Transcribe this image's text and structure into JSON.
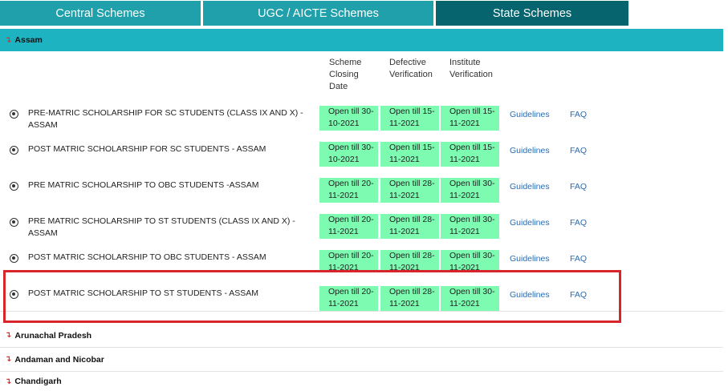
{
  "tabs": [
    {
      "label": "Central Schemes"
    },
    {
      "label": "UGC / AICTE Schemes"
    },
    {
      "label": "State Schemes"
    }
  ],
  "open_state": {
    "name": "Assam",
    "arrow": "↴"
  },
  "columns": {
    "closing": "Scheme Closing Date",
    "defective": "Defective Verification",
    "institute": "Institute Verification"
  },
  "schemes": [
    {
      "name": "PRE-MATRIC SCHOLARSHIP FOR SC STUDENTS (CLASS IX AND X) - ASSAM",
      "closing": "Open till 30-10-2021",
      "defective": "Open till 15-11-2021",
      "institute": "Open till 15-11-2021",
      "guidelines": "Guidelines",
      "faq": "FAQ"
    },
    {
      "name": "POST MATRIC SCHOLARSHIP FOR SC STUDENTS - ASSAM",
      "closing": "Open till 30-10-2021",
      "defective": "Open till 15-11-2021",
      "institute": "Open till 15-11-2021",
      "guidelines": "Guidelines",
      "faq": "FAQ"
    },
    {
      "name": "PRE MATRIC SCHOLARSHIP TO OBC STUDENTS -ASSAM",
      "closing": "Open till 20-11-2021",
      "defective": "Open till 28-11-2021",
      "institute": "Open till 30-11-2021",
      "guidelines": "Guidelines",
      "faq": "FAQ"
    },
    {
      "name": "PRE MATRIC SCHOLARSHIP TO ST STUDENTS (CLASS IX AND X) - ASSAM",
      "closing": "Open till 20-11-2021",
      "defective": "Open till 28-11-2021",
      "institute": "Open till 30-11-2021",
      "guidelines": "Guidelines",
      "faq": "FAQ"
    },
    {
      "name": "POST MATRIC SCHOLARSHIP TO OBC STUDENTS - ASSAM",
      "closing": "Open till 20-11-2021",
      "defective": "Open till 28-11-2021",
      "institute": "Open till 30-11-2021",
      "guidelines": "Guidelines",
      "faq": "FAQ"
    },
    {
      "name": "POST MATRIC SCHOLARSHIP TO ST STUDENTS - ASSAM",
      "closing": "Open till 20-11-2021",
      "defective": "Open till 28-11-2021",
      "institute": "Open till 30-11-2021",
      "guidelines": "Guidelines",
      "faq": "FAQ"
    }
  ],
  "other_states": [
    {
      "name": "Arunachal Pradesh",
      "arrow": "↴"
    },
    {
      "name": "Andaman and Nicobar",
      "arrow": "↴"
    },
    {
      "name": "Chandigarh",
      "arrow": "↴"
    }
  ],
  "colors": {
    "tab": "#1fa0ab",
    "tab_active": "#05646e",
    "header_bar": "#1db3c1",
    "date_cell": "#7dfbb1",
    "highlight": "#d7252b",
    "link": "#2a6bb1"
  }
}
